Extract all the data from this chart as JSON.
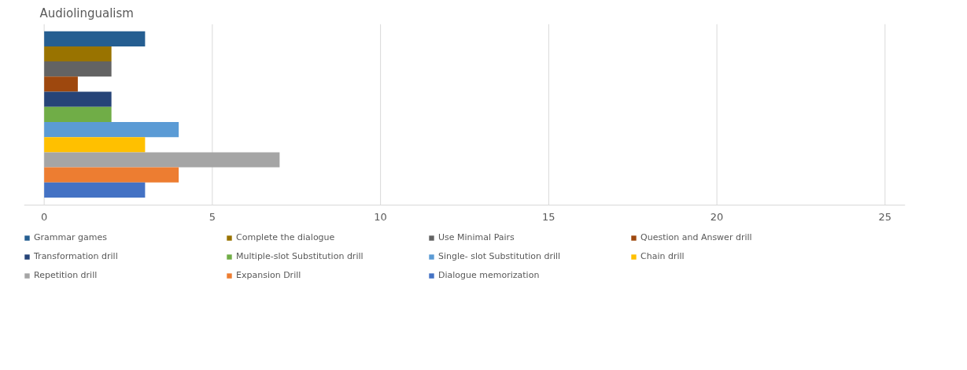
{
  "chart_data": {
    "type": "bar",
    "orientation": "horizontal",
    "title": "Audiolingualism",
    "categories": [
      null
    ],
    "series": [
      {
        "name": "Grammar games",
        "color": "#255e91",
        "values": [
          3
        ]
      },
      {
        "name": "Complete the dialogue",
        "color": "#997300",
        "values": [
          2
        ]
      },
      {
        "name": "Use Minimal Pairs",
        "color": "#636363",
        "values": [
          2
        ]
      },
      {
        "name": "Question and Answer drill",
        "color": "#9e480e",
        "values": [
          1
        ]
      },
      {
        "name": "Transformation drill",
        "color": "#264478",
        "values": [
          2
        ]
      },
      {
        "name": "Multiple-slot Substitution drill",
        "color": "#70ad47",
        "values": [
          2
        ]
      },
      {
        "name": "Single- slot Substitution drill",
        "color": "#5b9bd5",
        "values": [
          4
        ]
      },
      {
        "name": "Chain drill",
        "color": "#ffc000",
        "values": [
          3
        ]
      },
      {
        "name": "Repetition drill",
        "color": "#a5a5a5",
        "values": [
          7
        ]
      },
      {
        "name": "Expansion Drill",
        "color": "#ed7d31",
        "values": [
          4
        ]
      },
      {
        "name": "Dialogue memorization",
        "color": "#4472c4",
        "values": [
          3
        ]
      }
    ],
    "xlim": [
      -0.6,
      25.6
    ],
    "xticks": [
      0,
      5,
      10,
      15,
      20,
      25
    ],
    "grid": "x",
    "legend": "bottom"
  }
}
